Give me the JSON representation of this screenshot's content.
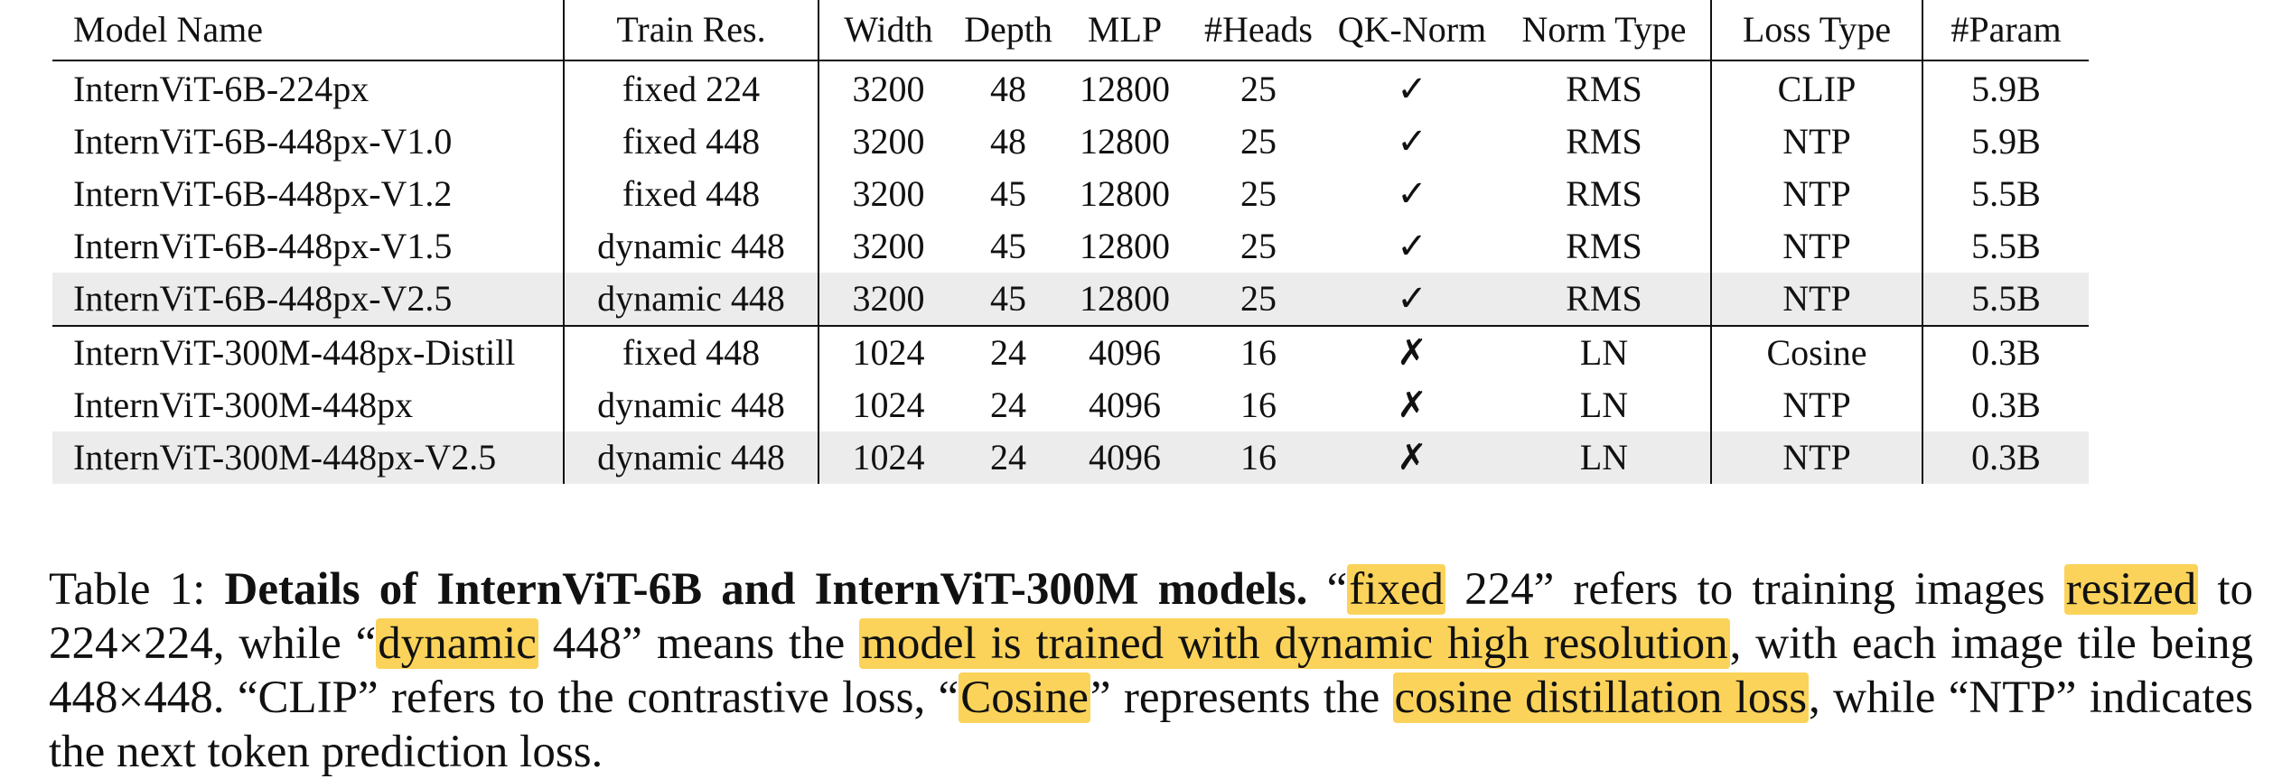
{
  "table": {
    "headers": [
      "Model Name",
      "Train Res.",
      "Width",
      "Depth",
      "MLP",
      "#Heads",
      "QK-Norm",
      "Norm Type",
      "Loss Type",
      "#Param"
    ],
    "rows": [
      [
        "InternViT-6B-224px",
        "fixed 224",
        "3200",
        "48",
        "12800",
        "25",
        "✓",
        "RMS",
        "CLIP",
        "5.9B"
      ],
      [
        "InternViT-6B-448px-V1.0",
        "fixed 448",
        "3200",
        "48",
        "12800",
        "25",
        "✓",
        "RMS",
        "NTP",
        "5.9B"
      ],
      [
        "InternViT-6B-448px-V1.2",
        "fixed 448",
        "3200",
        "45",
        "12800",
        "25",
        "✓",
        "RMS",
        "NTP",
        "5.5B"
      ],
      [
        "InternViT-6B-448px-V1.5",
        "dynamic 448",
        "3200",
        "45",
        "12800",
        "25",
        "✓",
        "RMS",
        "NTP",
        "5.5B"
      ],
      [
        "InternViT-6B-448px-V2.5",
        "dynamic 448",
        "3200",
        "45",
        "12800",
        "25",
        "✓",
        "RMS",
        "NTP",
        "5.5B"
      ],
      [
        "InternViT-300M-448px-Distill",
        "fixed 448",
        "1024",
        "24",
        "4096",
        "16",
        "✗",
        "LN",
        "Cosine",
        "0.3B"
      ],
      [
        "InternViT-300M-448px",
        "dynamic 448",
        "1024",
        "24",
        "4096",
        "16",
        "✗",
        "LN",
        "NTP",
        "0.3B"
      ],
      [
        "InternViT-300M-448px-V2.5",
        "dynamic 448",
        "1024",
        "24",
        "4096",
        "16",
        "✗",
        "LN",
        "NTP",
        "0.3B"
      ]
    ]
  },
  "caption": {
    "label": "Table 1:",
    "title": "Details of InternViT-6B and InternViT-300M models.",
    "segments": [
      {
        "text": " “",
        "hl": false
      },
      {
        "text": "fixed",
        "hl": true
      },
      {
        "text": " 224” refers to training images ",
        "hl": false
      },
      {
        "text": "resized",
        "hl": true
      },
      {
        "text": " to 224×224, while “",
        "hl": false
      },
      {
        "text": "dynamic",
        "hl": true
      },
      {
        "text": " 448” means the ",
        "hl": false
      },
      {
        "text": "model is trained with dynamic high resolution",
        "hl": true
      },
      {
        "text": ", with each image tile being 448×448. “CLIP” refers to the contrastive loss, “",
        "hl": false
      },
      {
        "text": "Cosine",
        "hl": true
      },
      {
        "text": "” represents the ",
        "hl": false
      },
      {
        "text": "cosine distillation loss",
        "hl": true
      },
      {
        "text": ", while “NTP” indicates the next token prediction loss.",
        "hl": false
      }
    ]
  },
  "colors": {
    "highlight": "#fbd35a",
    "row_shade": "#ececec",
    "text": "#111111"
  }
}
